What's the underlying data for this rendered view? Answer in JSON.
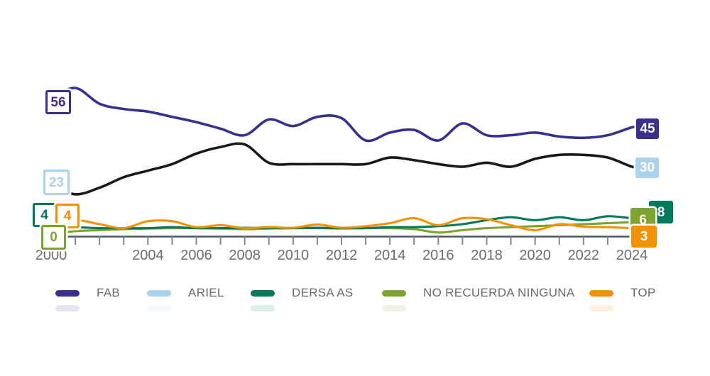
{
  "page": {
    "background": "#ffffff"
  },
  "chart_data": {
    "type": "line",
    "title": "",
    "xlabel": "",
    "ylabel": "",
    "x_range": [
      2000,
      2024
    ],
    "x": [
      2000,
      2001,
      2002,
      2003,
      2004,
      2005,
      2006,
      2007,
      2008,
      2009,
      2010,
      2011,
      2012,
      2013,
      2014,
      2015,
      2016,
      2017,
      2018,
      2019,
      2020,
      2021,
      2022,
      2023,
      2024
    ],
    "x_tick_labels": [
      "2000",
      "2004",
      "2006",
      "2008",
      "2010",
      "2012",
      "2014",
      "2016",
      "2018",
      "2020",
      "2022",
      "2024"
    ],
    "grid": false,
    "legend_position": "bottom",
    "axis_color": "#4d5962",
    "tick_color": "#7e888f",
    "tick_label_color": "#6d6d6d",
    "series": [
      {
        "name": "FAB",
        "color": "#3a2f8f",
        "line_color": "#37308d",
        "start_label": "56",
        "end_label": "45",
        "values": [
          56,
          60,
          54,
          52,
          51,
          49,
          47,
          44.5,
          42,
          48,
          45.5,
          49,
          48.5,
          40,
          43,
          44,
          40,
          46.5,
          42,
          42,
          43,
          41.5,
          41,
          42,
          45
        ]
      },
      {
        "name": "ARIEL",
        "color": "#a9d2ec",
        "line_color": "#17191c",
        "start_label": "23",
        "end_label": "30",
        "values": [
          23,
          19.5,
          22,
          26,
          28.5,
          31,
          35,
          37.5,
          38.5,
          31.5,
          31,
          31,
          31,
          31,
          33.5,
          32.5,
          31,
          30,
          31.5,
          30,
          33,
          34.5,
          34.5,
          33.5,
          30
        ]
      },
      {
        "name": "DERSA AS",
        "color": "#00795c",
        "line_color": "#00795c",
        "start_label": "4",
        "end_label": "8",
        "values": [
          4,
          3.5,
          3,
          3,
          3,
          3.5,
          3,
          3,
          3.2,
          3,
          3,
          3.2,
          3,
          3,
          3.5,
          3.5,
          4,
          5,
          7,
          8.5,
          7,
          8.5,
          7,
          9,
          8
        ]
      },
      {
        "name": "NO RECUERDA NINGUNA",
        "color": "#7da42d",
        "line_color": "#7da42d",
        "start_label": "0",
        "end_label": "6",
        "values": [
          0,
          1.5,
          2,
          2.5,
          2.8,
          3,
          3,
          2.8,
          2.5,
          2.8,
          3,
          3,
          2.8,
          3,
          3,
          2.5,
          0.8,
          2,
          3,
          3.5,
          4,
          4.5,
          5,
          5.5,
          6
        ]
      },
      {
        "name": "TOP",
        "color": "#f39200",
        "line_color": "#f39200",
        "start_label": "4",
        "end_label": "3",
        "values": [
          4,
          7,
          5,
          3,
          6.5,
          6.5,
          3.5,
          4.5,
          3,
          3.5,
          3.2,
          4.8,
          3.2,
          4,
          5.5,
          8,
          4.5,
          8,
          7.5,
          4.5,
          2,
          5,
          3.8,
          3.5,
          3
        ]
      }
    ]
  }
}
